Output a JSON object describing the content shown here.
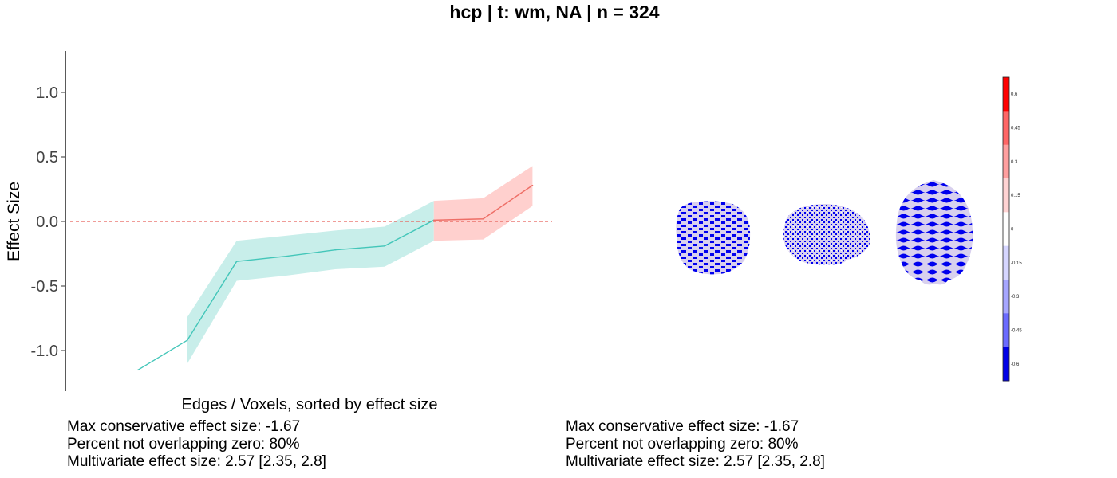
{
  "title": "hcp | t: wm, NA | n = 324",
  "chart_data": {
    "type": "line",
    "ylabel": "Effect Size",
    "xlabel": "Edges / Voxels, sorted by effect size",
    "ylim": [
      -1.3,
      1.3
    ],
    "yticks": [
      1.0,
      0.5,
      0.0,
      -0.5,
      -1.0
    ],
    "ytick_labels": [
      "1.0",
      "0.5",
      "0.0",
      "-0.5",
      "-1.0"
    ],
    "reference_line": {
      "y": 0,
      "style": "dashed",
      "color": "#e8625a"
    },
    "series": [
      {
        "color": "#43c6b9",
        "band_color": "#c8eeea",
        "x": [
          1,
          2,
          3,
          4,
          5,
          6,
          7
        ],
        "y": [
          -1.15,
          -0.92,
          -0.31,
          -0.27,
          -0.22,
          -0.19,
          0.01
        ],
        "lower": [
          null,
          -1.1,
          -0.46,
          -0.42,
          -0.37,
          -0.35,
          -0.15
        ],
        "upper": [
          null,
          -0.74,
          -0.15,
          -0.11,
          -0.07,
          -0.04,
          0.16
        ]
      },
      {
        "color": "#ee6e66",
        "band_color": "#ffd0ce",
        "x": [
          7,
          8,
          9
        ],
        "y": [
          0.01,
          0.02,
          0.28
        ],
        "lower": [
          -0.15,
          -0.14,
          0.12
        ],
        "upper": [
          0.16,
          0.18,
          0.43
        ]
      }
    ],
    "colorbar": {
      "tick_labels": [
        "0.6",
        "0.45",
        "0.3",
        "0.15",
        "0",
        "-0.15",
        "-0.3",
        "-0.45",
        "-0.6"
      ],
      "colors": [
        "#ff0000",
        "#ff6666",
        "#ff9f9f",
        "#ffd3d3",
        "#ffffff",
        "#d6d6ff",
        "#a6a6ff",
        "#6b6bff",
        "#0000e6"
      ]
    },
    "brain_colors": {
      "pattern_a": "#0000ee",
      "pattern_b": "#d8d0ee"
    }
  },
  "stats_left": {
    "line1": "Max conservative effect size: -1.67",
    "line2": "Percent not overlapping zero: 80%",
    "line3": "Multivariate effect size: 2.57 [2.35, 2.8]"
  },
  "stats_right": {
    "line1": "Max conservative effect size: -1.67",
    "line2": "Percent not overlapping zero: 80%",
    "line3": "Multivariate effect size: 2.57 [2.35, 2.8]"
  }
}
